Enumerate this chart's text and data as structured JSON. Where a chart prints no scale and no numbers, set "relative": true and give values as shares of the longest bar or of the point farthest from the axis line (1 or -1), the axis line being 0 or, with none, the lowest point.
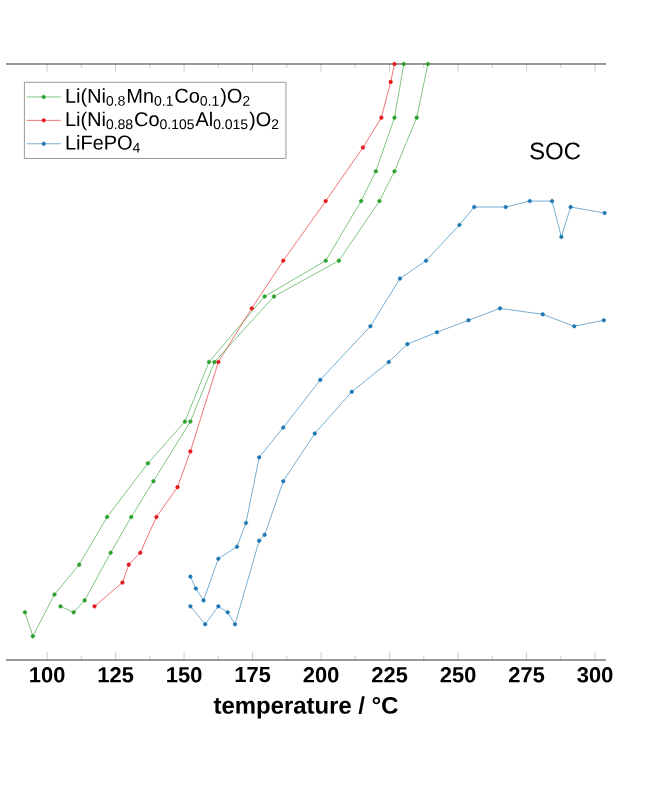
{
  "chart_data": {
    "type": "line",
    "relative": true,
    "xlabel": "temperature / °C",
    "xlim": [
      85,
      304
    ],
    "xticks": [
      100,
      125,
      150,
      175,
      200,
      225,
      250,
      275,
      300
    ],
    "legend": "top left",
    "marker": "circle",
    "line_style": "solid",
    "annotations": [
      "SOC"
    ],
    "series": [
      {
        "name": "Li(Ni$_{0.8}$Mn$_{0.1}$Co$_{0.1}$)O$_{2}$",
        "color": "#2ca02c",
        "x": [
          91.9,
          94.8,
          102.7,
          111.7,
          121.9,
          136.8,
          150.3,
          159.1,
          179.4,
          201.7,
          214.6,
          220.0,
          226.8,
          230.2
        ],
        "values": [
          0.08,
          0.04,
          0.11,
          0.16,
          0.24,
          0.33,
          0.4,
          0.5,
          0.61,
          0.67,
          0.77,
          0.82,
          0.91,
          1.0
        ]
      },
      {
        "name": "Li(Ni$_{0.88}$Co$_{0.105}$Al$_{0.015}$)O$_{2}$",
        "color": "#e31a1c",
        "x": [
          117.3,
          127.5,
          129.8,
          134.0,
          139.9,
          147.6,
          152.3,
          162.5,
          174.7,
          186.2,
          201.7,
          215.3,
          222.0,
          225.4,
          226.8
        ],
        "values": [
          0.09,
          0.13,
          0.16,
          0.18,
          0.24,
          0.29,
          0.35,
          0.5,
          0.59,
          0.67,
          0.77,
          0.86,
          0.91,
          0.97,
          1.0
        ]
      },
      {
        "name": "LiFePO$_{4}$",
        "color": "#1f77b4",
        "x": [
          152.3,
          154.3,
          157.1,
          162.5,
          169.3,
          172.6,
          177.4,
          186.2,
          199.7,
          218.0,
          228.8,
          238.3,
          250.5,
          255.9,
          267.4,
          276.2,
          284.3,
          287.7,
          291.1,
          303.5
        ],
        "values": [
          0.14,
          0.12,
          0.1,
          0.17,
          0.19,
          0.23,
          0.34,
          0.39,
          0.47,
          0.56,
          0.64,
          0.67,
          0.73,
          0.76,
          0.76,
          0.77,
          0.77,
          0.71,
          0.76,
          0.75
        ]
      },
      {
        "color": "#2ca02c",
        "x": [
          104.9,
          109.7,
          113.7,
          123.2,
          130.7,
          138.8,
          152.3,
          161.1,
          182.8,
          206.5,
          221.3,
          226.8,
          234.9,
          239.0
        ],
        "values": [
          0.09,
          0.08,
          0.1,
          0.18,
          0.24,
          0.3,
          0.4,
          0.5,
          0.61,
          0.67,
          0.77,
          0.82,
          0.91,
          1.0
        ]
      },
      {
        "color": "#1f77b4",
        "x": [
          152.3,
          157.7,
          162.5,
          165.9,
          168.6,
          177.4,
          179.4,
          186.2,
          197.7,
          211.2,
          224.7,
          231.5,
          242.3,
          253.8,
          265.3,
          280.9,
          292.4,
          303.2
        ],
        "values": [
          0.09,
          0.06,
          0.09,
          0.08,
          0.06,
          0.2,
          0.21,
          0.3,
          0.38,
          0.45,
          0.5,
          0.53,
          0.55,
          0.57,
          0.59,
          0.58,
          0.56,
          0.57
        ]
      }
    ]
  }
}
